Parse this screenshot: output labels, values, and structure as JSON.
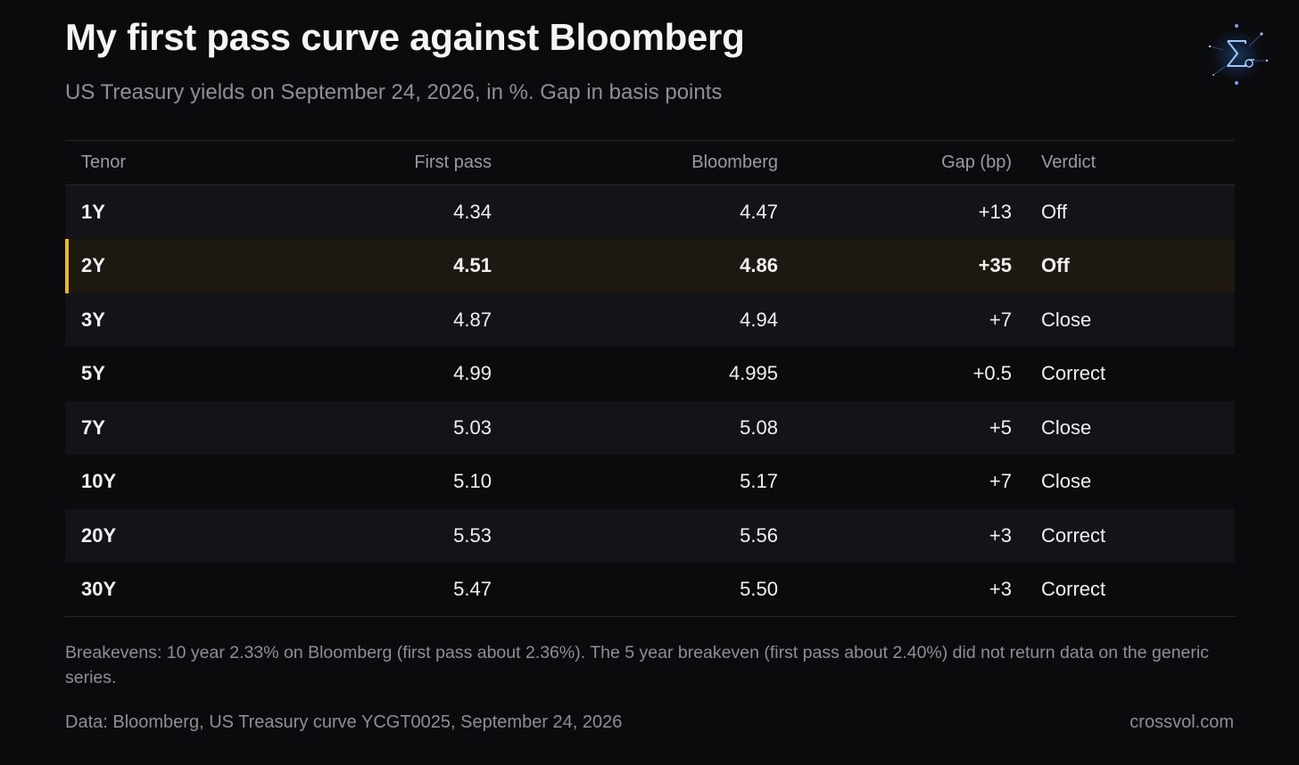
{
  "title": "My first pass curve against Bloomberg",
  "subtitle": "US Treasury yields on September 24, 2026, in %. Gap in basis points",
  "colors": {
    "background": "#0b0b0d",
    "highlight": "#e8b923",
    "highlight_row": "#1d1910",
    "muted_text": "#8e8e96"
  },
  "logo_icon": "sigma-sigma-constellation-icon",
  "chart_data": {
    "type": "table",
    "columns": [
      "Tenor",
      "First pass",
      "Bloomberg",
      "Gap (bp)",
      "Verdict"
    ],
    "rows": [
      {
        "tenor": "1Y",
        "first_pass": "4.34",
        "bloomberg": "4.47",
        "gap": "+13",
        "verdict": "Off",
        "highlight": false
      },
      {
        "tenor": "2Y",
        "first_pass": "4.51",
        "bloomberg": "4.86",
        "gap": "+35",
        "verdict": "Off",
        "highlight": true
      },
      {
        "tenor": "3Y",
        "first_pass": "4.87",
        "bloomberg": "4.94",
        "gap": "+7",
        "verdict": "Close",
        "highlight": false
      },
      {
        "tenor": "5Y",
        "first_pass": "4.99",
        "bloomberg": "4.995",
        "gap": "+0.5",
        "verdict": "Correct",
        "highlight": false
      },
      {
        "tenor": "7Y",
        "first_pass": "5.03",
        "bloomberg": "5.08",
        "gap": "+5",
        "verdict": "Close",
        "highlight": false
      },
      {
        "tenor": "10Y",
        "first_pass": "5.10",
        "bloomberg": "5.17",
        "gap": "+7",
        "verdict": "Close",
        "highlight": false
      },
      {
        "tenor": "20Y",
        "first_pass": "5.53",
        "bloomberg": "5.56",
        "gap": "+3",
        "verdict": "Correct",
        "highlight": false
      },
      {
        "tenor": "30Y",
        "first_pass": "5.47",
        "bloomberg": "5.50",
        "gap": "+3",
        "verdict": "Correct",
        "highlight": false
      }
    ]
  },
  "note": "Breakevens: 10 year 2.33% on Bloomberg (first pass about 2.36%). The 5 year breakeven (first pass about 2.40%) did not return data on the generic series.",
  "source": "Data: Bloomberg, US Treasury curve YCGT0025, September 24, 2026",
  "site": "crossvol.com"
}
